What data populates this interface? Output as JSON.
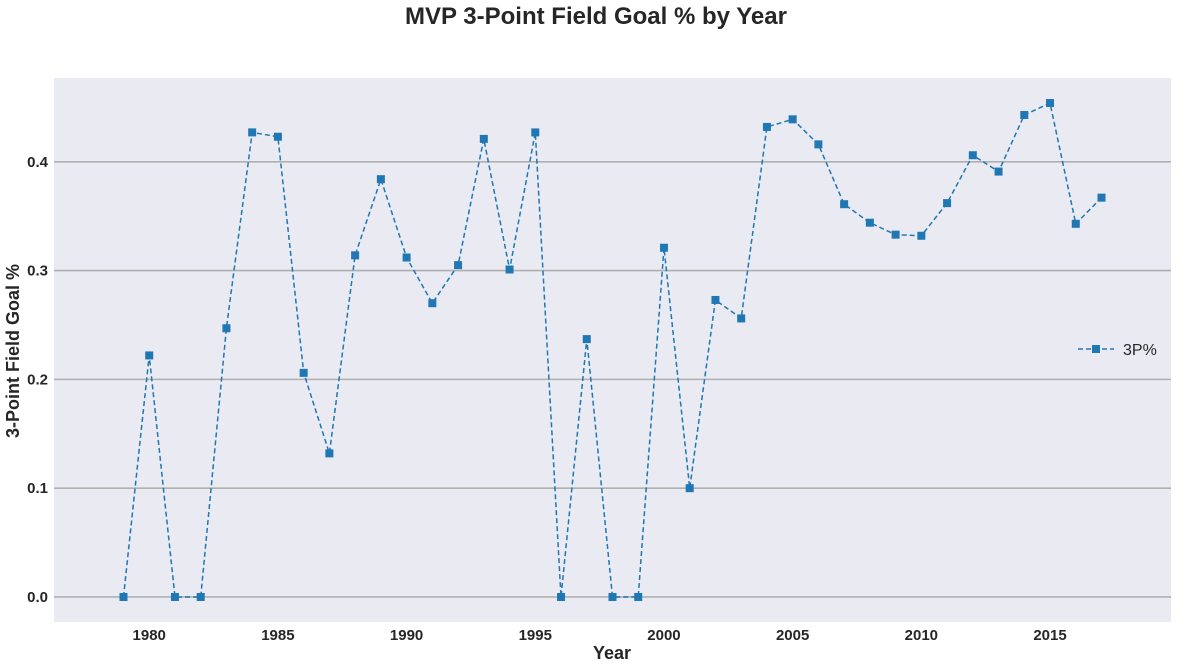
{
  "chart_data": {
    "type": "line",
    "title": "MVP 3-Point Field Goal % by Year",
    "xlabel": "Year",
    "ylabel": "3-Point Field Goal %",
    "xlim": [
      1976.3,
      2019.7
    ],
    "ylim": [
      -0.023,
      0.477
    ],
    "x_ticks": [
      1980,
      1985,
      1990,
      1995,
      2000,
      2005,
      2010,
      2015
    ],
    "y_ticks": [
      0.0,
      0.1,
      0.2,
      0.3,
      0.4
    ],
    "x_tick_labels": [
      "1980",
      "1985",
      "1990",
      "1995",
      "2000",
      "2005",
      "2010",
      "2015"
    ],
    "y_tick_labels": [
      "0.0",
      "0.1",
      "0.2",
      "0.3",
      "0.4"
    ],
    "grid": "horizontal",
    "legend": "center-right",
    "series": [
      {
        "name": "3P%",
        "color": "#1f77b4",
        "linestyle": "dashed",
        "marker": "square",
        "x": [
          1979,
          1980,
          1981,
          1982,
          1983,
          1984,
          1985,
          1986,
          1987,
          1988,
          1989,
          1990,
          1991,
          1992,
          1993,
          1994,
          1995,
          1996,
          1997,
          1998,
          1999,
          2000,
          2001,
          2002,
          2003,
          2004,
          2005,
          2006,
          2007,
          2008,
          2009,
          2010,
          2011,
          2012,
          2013,
          2014,
          2015,
          2016,
          2017
        ],
        "y": [
          0.0,
          0.222,
          0.0,
          0.0,
          0.247,
          0.427,
          0.423,
          0.206,
          0.132,
          0.314,
          0.384,
          0.312,
          0.27,
          0.305,
          0.421,
          0.301,
          0.427,
          0.0,
          0.237,
          0.0,
          0.0,
          0.321,
          0.1,
          0.273,
          0.256,
          0.432,
          0.439,
          0.416,
          0.361,
          0.344,
          0.333,
          0.332,
          0.362,
          0.406,
          0.391,
          0.443,
          0.454,
          0.343,
          0.367
        ]
      }
    ]
  },
  "colors": {
    "plot_background": "#eaeaf2",
    "grid": "#b0b0b0",
    "series": "#1f77b4",
    "text": "#262626"
  }
}
